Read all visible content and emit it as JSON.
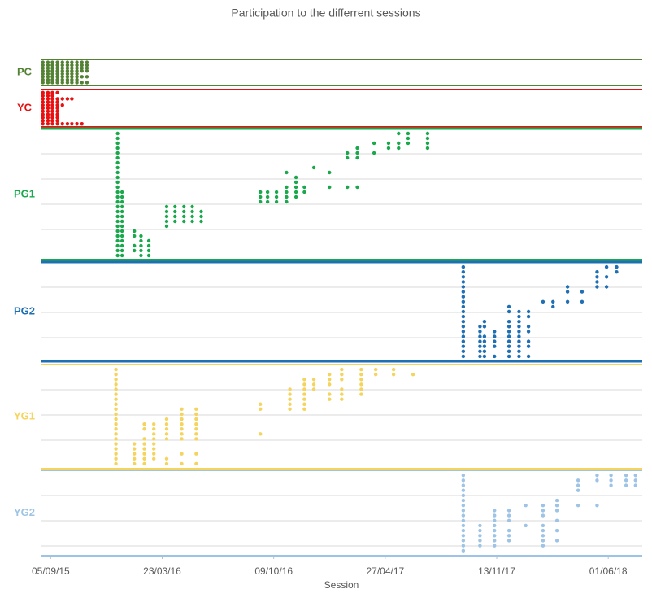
{
  "chart_data": {
    "type": "dot",
    "title": "Participation to the differrent sessions",
    "x_label": "Session",
    "xlim": [
      "2015-08-18",
      "2018-08-01"
    ],
    "xticks": [
      {
        "value": "2015-09-05",
        "label": "05/09/15"
      },
      {
        "value": "2016-03-23",
        "label": "23/03/16"
      },
      {
        "value": "2016-10-09",
        "label": "09/10/16"
      },
      {
        "value": "2017-04-27",
        "label": "27/04/17"
      },
      {
        "value": "2017-11-13",
        "label": "13/11/17"
      },
      {
        "value": "2018-06-01",
        "label": "01/06/18"
      }
    ],
    "grid": true,
    "panels": [
      {
        "name": "PC",
        "color": "#548235",
        "ylim": [
          0,
          9
        ],
        "x": [
          "2015-08-22",
          "2015-08-31",
          "2015-09-08",
          "2015-09-17",
          "2015-09-26",
          "2015-10-05",
          "2015-10-13",
          "2015-10-22",
          "2015-10-31",
          "2015-11-09"
        ],
        "rows": [
          [
            1,
            2,
            3,
            4,
            5,
            6,
            7,
            8
          ],
          [
            1,
            2,
            3,
            4,
            5,
            6,
            7,
            8
          ],
          [
            1,
            2,
            3,
            4,
            5,
            6,
            7,
            8
          ],
          [
            1,
            2,
            3,
            4,
            5,
            6,
            7,
            8
          ],
          [
            1,
            2,
            3,
            4,
            5,
            6,
            7,
            8
          ],
          [
            1,
            2,
            3,
            4,
            5,
            6,
            7,
            8
          ],
          [
            1,
            2,
            3,
            4,
            5,
            6,
            7,
            8
          ],
          [
            1,
            2,
            3,
            4,
            5,
            6,
            7,
            8
          ],
          [
            1,
            2,
            3,
            4,
            6,
            8
          ],
          [
            1,
            2,
            3,
            4,
            6,
            8
          ]
        ]
      },
      {
        "name": "YC",
        "color": "#e81010",
        "ylim": [
          0,
          12
        ],
        "x": [
          "2015-08-22",
          "2015-08-31",
          "2015-09-08",
          "2015-09-17",
          "2015-09-26",
          "2015-10-05",
          "2015-10-13",
          "2015-10-22",
          "2015-10-31"
        ],
        "rows": [
          [
            1,
            2,
            3,
            4,
            5,
            6,
            7,
            8,
            9,
            10,
            11
          ],
          [
            1,
            2,
            3,
            4,
            5,
            6,
            7,
            8,
            9,
            10,
            11
          ],
          [
            1,
            2,
            3,
            4,
            5,
            6,
            7,
            8,
            9,
            10,
            11
          ],
          [
            1,
            3,
            4,
            5,
            6,
            7,
            8,
            9,
            10,
            11
          ],
          [
            3,
            5,
            11
          ],
          [
            3,
            11
          ],
          [
            3,
            11
          ],
          [
            11
          ],
          [
            11
          ]
        ]
      },
      {
        "name": "PG1",
        "color": "#1aa84c",
        "ylim": [
          0,
          27
        ],
        "x": [
          "2016-01-03",
          "2016-01-11",
          "2016-02-02",
          "2016-02-14",
          "2016-02-28",
          "2016-03-31",
          "2016-04-15",
          "2016-05-01",
          "2016-05-16",
          "2016-06-01",
          "2016-09-15",
          "2016-09-28",
          "2016-10-14",
          "2016-11-01",
          "2016-11-18",
          "2016-12-03",
          "2016-12-20",
          "2017-01-17",
          "2017-02-18",
          "2017-03-08",
          "2017-04-07",
          "2017-05-03",
          "2017-05-21",
          "2017-06-07",
          "2017-07-12"
        ],
        "rows": [
          [
            1,
            2,
            3,
            4,
            5,
            6,
            7,
            8,
            9,
            10,
            11,
            12,
            13,
            14,
            15,
            16,
            17,
            18,
            19,
            20,
            21,
            22,
            23,
            24,
            25,
            26
          ],
          [
            13,
            14,
            15,
            16,
            17,
            18,
            19,
            20,
            21,
            22,
            23,
            24,
            25,
            26
          ],
          [
            21,
            22,
            24,
            25
          ],
          [
            22,
            23,
            24,
            25,
            26
          ],
          [
            23,
            24,
            25,
            26
          ],
          [
            16,
            17,
            18,
            19,
            20
          ],
          [
            16,
            17,
            18,
            19
          ],
          [
            16,
            17,
            18,
            19
          ],
          [
            16,
            17,
            18,
            19
          ],
          [
            17,
            18,
            19
          ],
          [
            13,
            14,
            15
          ],
          [
            13,
            14,
            15
          ],
          [
            13,
            14,
            15
          ],
          [
            9,
            12,
            13,
            14,
            15
          ],
          [
            10,
            11,
            12,
            13,
            14
          ],
          [
            12,
            13
          ],
          [
            8
          ],
          [
            9,
            12
          ],
          [
            5,
            6,
            12
          ],
          [
            4,
            5,
            6,
            12
          ],
          [
            3,
            5
          ],
          [
            3,
            4
          ],
          [
            1,
            3,
            4
          ],
          [
            1,
            2,
            3
          ],
          [
            1,
            2,
            3,
            4
          ]
        ]
      },
      {
        "name": "PG2",
        "color": "#1f6fb4",
        "ylim": [
          0,
          20
        ],
        "x": [
          "2017-09-14",
          "2017-10-14",
          "2017-10-22",
          "2017-11-09",
          "2017-12-05",
          "2017-12-23",
          "2018-01-09",
          "2018-02-04",
          "2018-02-22",
          "2018-03-20",
          "2018-04-15",
          "2018-05-12",
          "2018-05-29",
          "2018-06-16"
        ],
        "rows": [
          [
            1,
            2,
            3,
            4,
            5,
            6,
            7,
            8,
            9,
            10,
            11,
            12,
            13,
            14,
            15,
            16,
            17,
            18,
            19
          ],
          [
            13,
            14,
            15,
            16,
            17,
            18,
            19
          ],
          [
            12,
            13,
            15,
            16,
            17,
            18,
            19
          ],
          [
            14,
            15,
            16,
            17,
            19
          ],
          [
            9,
            10,
            12,
            13,
            14,
            15,
            16,
            17,
            18,
            19
          ],
          [
            10,
            11,
            12,
            13,
            14,
            15,
            16,
            17,
            18,
            19
          ],
          [
            10,
            11,
            13,
            14,
            16,
            17,
            19
          ],
          [
            8
          ],
          [
            8,
            9
          ],
          [
            5,
            6,
            8
          ],
          [
            6,
            8
          ],
          [
            2,
            3,
            4,
            5
          ],
          [
            1,
            3,
            5
          ],
          [
            1,
            2
          ]
        ]
      },
      {
        "name": "YG1",
        "color": "#f5d45e",
        "ylim": [
          0,
          21
        ],
        "x": [
          "2015-12-31",
          "2016-02-02",
          "2016-02-20",
          "2016-03-08",
          "2016-03-31",
          "2016-04-27",
          "2016-05-23",
          "2016-09-15",
          "2016-11-07",
          "2016-12-03",
          "2016-12-20",
          "2017-01-17",
          "2017-02-08",
          "2017-03-15",
          "2017-04-10",
          "2017-05-12",
          "2017-06-16"
        ],
        "rows": [
          [
            1,
            2,
            3,
            4,
            5,
            6,
            7,
            8,
            9,
            10,
            11,
            12,
            13,
            14,
            15,
            16,
            17,
            18,
            19,
            20
          ],
          [
            16,
            17,
            18,
            19,
            20
          ],
          [
            12,
            13,
            15,
            16,
            17,
            18,
            19,
            20
          ],
          [
            12,
            13,
            14,
            15,
            16,
            17,
            18,
            19
          ],
          [
            11,
            12,
            13,
            14,
            15,
            19,
            20
          ],
          [
            9,
            10,
            11,
            12,
            13,
            14,
            15,
            18,
            20
          ],
          [
            9,
            10,
            11,
            12,
            13,
            14,
            15,
            18,
            20
          ],
          [
            8,
            9,
            14
          ],
          [
            5,
            6,
            7,
            8,
            9
          ],
          [
            3,
            4,
            5,
            6,
            7,
            8,
            9
          ],
          [
            3,
            4,
            5
          ],
          [
            2,
            3,
            4,
            6,
            7
          ],
          [
            1,
            2,
            3,
            5,
            6,
            7
          ],
          [
            1,
            2,
            3,
            4,
            5,
            6
          ],
          [
            1,
            2
          ],
          [
            1,
            2
          ],
          [
            2
          ]
        ]
      },
      {
        "name": "YG2",
        "color": "#9dc3e6",
        "ylim": [
          0,
          17
        ],
        "x": [
          "2017-09-14",
          "2017-10-14",
          "2017-11-09",
          "2017-12-05",
          "2018-01-04",
          "2018-02-04",
          "2018-03-01",
          "2018-04-08",
          "2018-05-12",
          "2018-06-06",
          "2018-07-03",
          "2018-07-20"
        ],
        "rows": [
          [
            1,
            2,
            3,
            4,
            5,
            6,
            7,
            8,
            9,
            10,
            11,
            12,
            13,
            14,
            15,
            16
          ],
          [
            11,
            12,
            13,
            14,
            15
          ],
          [
            8,
            9,
            10,
            11,
            12,
            13,
            14,
            15
          ],
          [
            8,
            9,
            10,
            12,
            13,
            14
          ],
          [
            7,
            11
          ],
          [
            7,
            8,
            9,
            11,
            12,
            13,
            14,
            15
          ],
          [
            6,
            7,
            8,
            10,
            12,
            14
          ],
          [
            2,
            3,
            4,
            7
          ],
          [
            1,
            2,
            7
          ],
          [
            1,
            2,
            3
          ],
          [
            1,
            2,
            3
          ],
          [
            1,
            2,
            3
          ]
        ]
      }
    ]
  }
}
